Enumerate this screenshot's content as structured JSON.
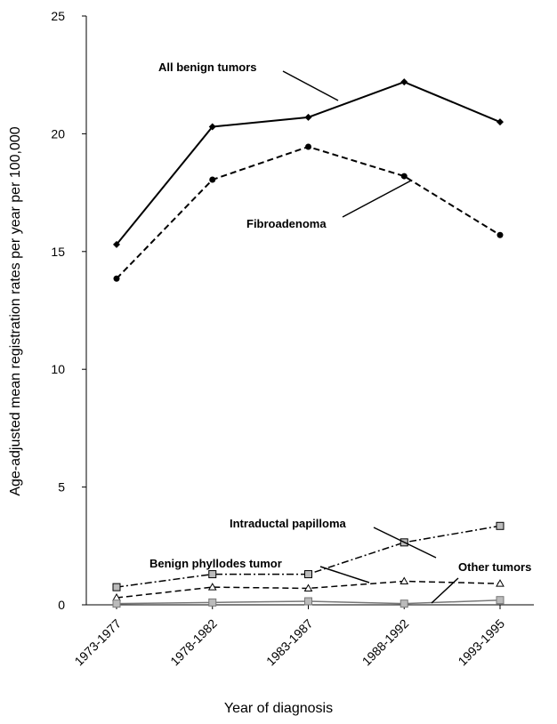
{
  "chart_data": {
    "type": "line",
    "x_label": "Year of diagnosis",
    "y_label": "Age-adjusted mean registration rates per year per 100,000",
    "categories": [
      "1973-1977",
      "1978-1982",
      "1983-1987",
      "1988-1992",
      "1993-1995"
    ],
    "ylim": [
      0,
      25
    ],
    "yticks": [
      0,
      5,
      10,
      15,
      20,
      25
    ],
    "grid": false,
    "series": [
      {
        "name": "All benign tumors",
        "color": "#000000",
        "dash": "solid",
        "marker": "diamond",
        "values": [
          15.3,
          20.3,
          20.7,
          22.2,
          20.5
        ]
      },
      {
        "name": "Fibroadenoma",
        "color": "#000000",
        "dash": "dashed",
        "marker": "circle",
        "values": [
          13.85,
          18.05,
          19.45,
          18.2,
          15.7
        ]
      },
      {
        "name": "Intraductal papilloma",
        "color": "#000000",
        "dash": "dashdot",
        "marker": "square",
        "values": [
          0.75,
          1.3,
          1.3,
          2.65,
          3.35
        ]
      },
      {
        "name": "Benign phyllodes tumor",
        "color": "#000000",
        "dash": "dashed",
        "marker": "triangle",
        "values": [
          0.3,
          0.75,
          0.7,
          1.0,
          0.9
        ]
      },
      {
        "name": "Other tumors",
        "color": "#777777",
        "dash": "solid",
        "marker": "square",
        "values": [
          0.05,
          0.1,
          0.15,
          0.05,
          0.2
        ]
      }
    ]
  }
}
